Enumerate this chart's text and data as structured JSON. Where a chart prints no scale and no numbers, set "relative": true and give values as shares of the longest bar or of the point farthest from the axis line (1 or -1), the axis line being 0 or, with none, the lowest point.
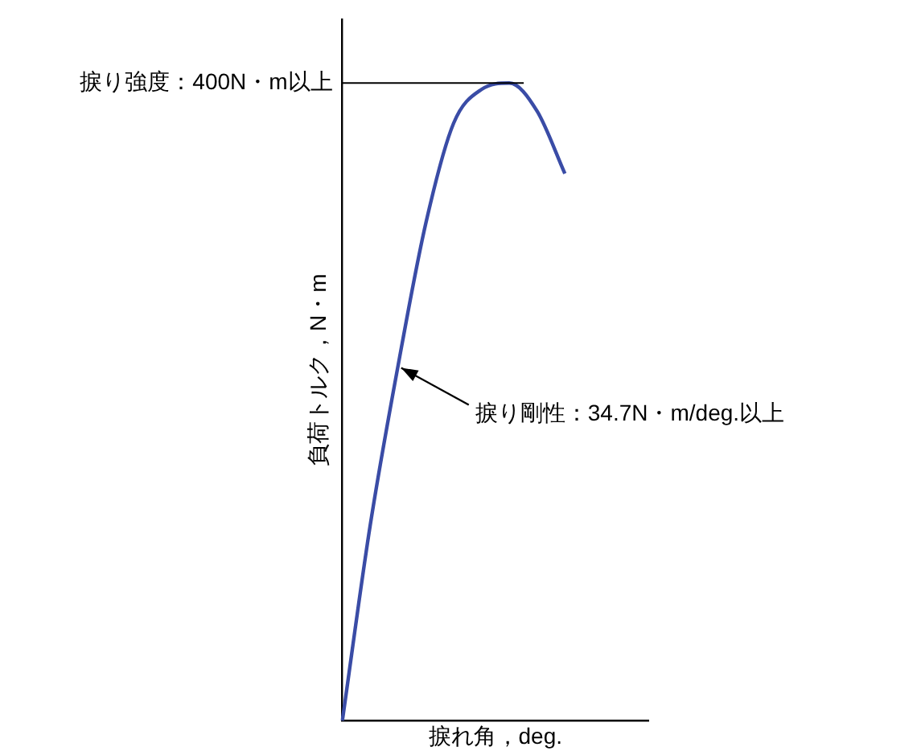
{
  "chart_data": {
    "type": "line",
    "relative": true,
    "xlabel": "捩れ角，deg.",
    "ylabel": "負荷トルク，N・m",
    "grid": false,
    "legend": false,
    "marker": "none",
    "line_style": "solid",
    "categories": [
      null,
      null,
      null,
      null,
      null,
      null,
      null,
      null,
      null,
      null,
      null,
      null
    ],
    "series": [
      {
        "color": "#3a4ca6",
        "values": [
          0,
          0.306,
          0.556,
          0.78,
          0.937,
          0.99,
          1,
          0.956,
          0.858,
          null,
          null,
          null
        ]
      }
    ],
    "ref_lines": [
      {
        "axis": "y",
        "value": 1,
        "label": "捩り強度：400N・m以上",
        "color": "#000000"
      }
    ],
    "annotations": [
      "捩り剛性：34.7N・m/deg.以上"
    ]
  }
}
